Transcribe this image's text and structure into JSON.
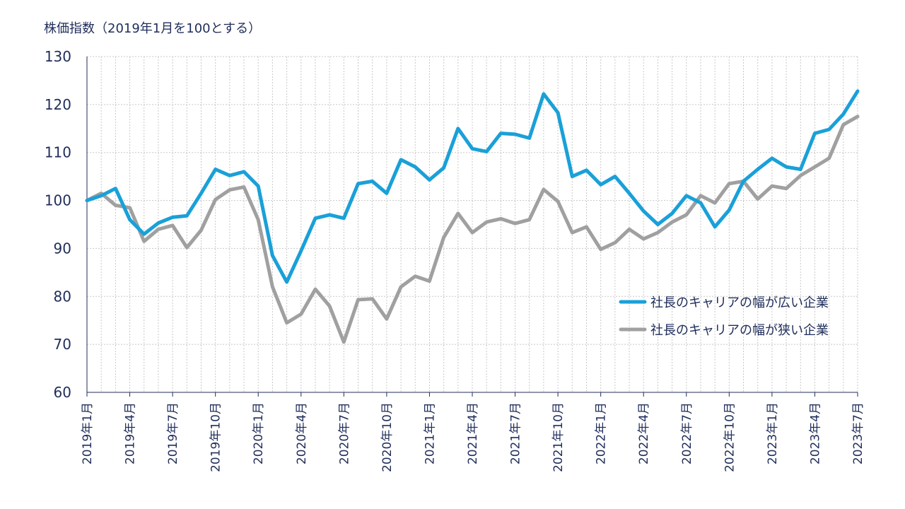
{
  "chart_data": {
    "type": "line",
    "title": "株価指数（2019年1月を100とする）",
    "xlabel": "",
    "ylabel": "",
    "ylim": [
      60,
      130
    ],
    "yticks": [
      60,
      70,
      80,
      90,
      100,
      110,
      120,
      130
    ],
    "grid": true,
    "legend_position": "right",
    "x_tick_labels": [
      "2019年1月",
      "2019年4月",
      "2019年7月",
      "2019年10月",
      "2020年1月",
      "2020年4月",
      "2020年7月",
      "2020年10月",
      "2021年1月",
      "2021年4月",
      "2021年7月",
      "2021年10月",
      "2022年1月",
      "2022年4月",
      "2022年7月",
      "2022年10月",
      "2023年1月",
      "2023年4月",
      "2023年7月"
    ],
    "colors": {
      "wide": "#1aa0d8",
      "narrow": "#a0a0a0",
      "axis": "#1f2d5a"
    },
    "series": [
      {
        "name": "社長のキャリアの幅が広い企業",
        "color": "#1aa0d8",
        "values": [
          100,
          101,
          102.5,
          96,
          93,
          95.3,
          96.5,
          96.8,
          101.5,
          106.5,
          105.2,
          106,
          103,
          88.5,
          83,
          89.5,
          96.3,
          97,
          96.3,
          103.5,
          104,
          101.5,
          108.5,
          107,
          104.3,
          106.8,
          115,
          110.8,
          110.2,
          114,
          113.8,
          113,
          122.2,
          118.3,
          105,
          106.3,
          103.3,
          105,
          101.5,
          97.8,
          95,
          97.3,
          101,
          99.5,
          94.5,
          98,
          104,
          106.5,
          108.8,
          107,
          106.5,
          114,
          114.8,
          118,
          122.8
        ]
      },
      {
        "name": "社長のキャリアの幅が狭い企業",
        "color": "#a0a0a0",
        "values": [
          100,
          101.5,
          99,
          98.5,
          91.5,
          94,
          94.8,
          90.2,
          93.8,
          100.2,
          102.2,
          102.8,
          96,
          82,
          74.5,
          76.3,
          81.5,
          78,
          70.5,
          79.3,
          79.5,
          75.3,
          82,
          84.2,
          83.2,
          92.3,
          97.3,
          93.3,
          95.5,
          96.2,
          95.2,
          96,
          102.3,
          99.8,
          93.3,
          94.5,
          89.8,
          91.2,
          94,
          92,
          93.3,
          95.5,
          97,
          101,
          99.5,
          103.5,
          104,
          100.3,
          103,
          102.5,
          105.2,
          107,
          108.8,
          115.8,
          117.5
        ]
      }
    ]
  }
}
